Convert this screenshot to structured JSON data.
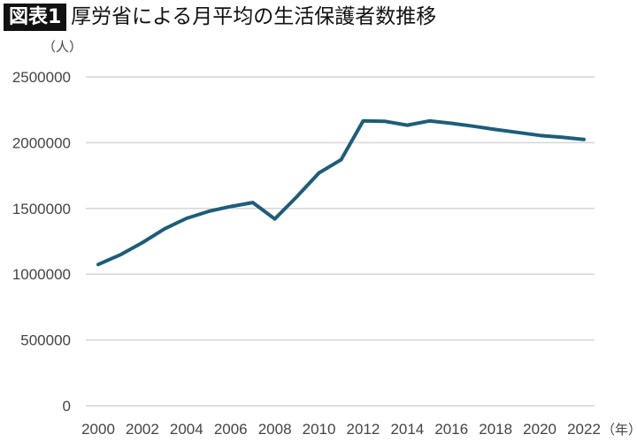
{
  "header": {
    "badge": "図表1",
    "title": "厚労省による月平均の生活保護者数推移"
  },
  "chart_data": {
    "type": "line",
    "title": "厚労省による月平均の生活保護者数推移",
    "ylabel": "（人）",
    "xlabel": "（年）",
    "ylim": [
      0,
      2500000
    ],
    "yticks": [
      0,
      500000,
      1000000,
      1500000,
      2000000,
      2500000
    ],
    "ytick_labels": [
      "0",
      "500000",
      "1000000",
      "1500000",
      "2000000",
      "2500000"
    ],
    "xtick_labels": [
      "2000",
      "2002",
      "2004",
      "2006",
      "2008",
      "2010",
      "2012",
      "2014",
      "2016",
      "2018",
      "2020",
      "2022"
    ],
    "grid": true,
    "line_color": "#1d5d7a",
    "x": [
      2000,
      2001,
      2002,
      2003,
      2004,
      2005,
      2006,
      2007,
      2008,
      2009,
      2010,
      2011,
      2012,
      2013,
      2014,
      2015,
      2016,
      2017,
      2018,
      2019,
      2020,
      2021,
      2022
    ],
    "values": [
      1074000,
      1148000,
      1240000,
      1345000,
      1425000,
      1478000,
      1515000,
      1545000,
      1420000,
      1590000,
      1770000,
      1870000,
      2165000,
      2162000,
      2133000,
      2165000,
      2147000,
      2125000,
      2100000,
      2078000,
      2055000,
      2042000,
      2025000
    ]
  }
}
